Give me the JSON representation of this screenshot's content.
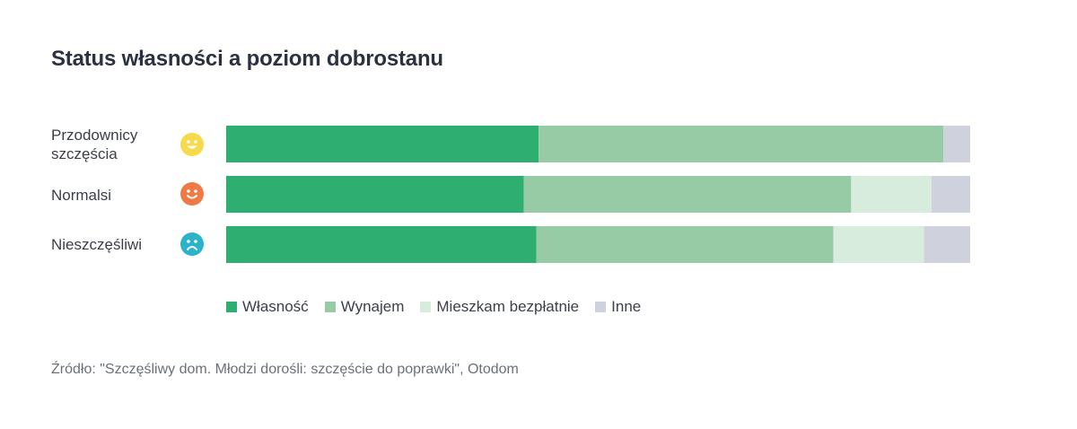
{
  "title": "Status własności a poziom dobrostanu",
  "source": "Źródło: \"Szczęśliwy dom. Młodzi dorośli: szczęście do poprawki\", Otodom",
  "chart_data": {
    "type": "bar",
    "orientation": "horizontal",
    "stacked": true,
    "normalized_percent": true,
    "categories": [
      "Przodownicy\nszczęścia",
      "Normalsi",
      "Nieszczęśliwi"
    ],
    "category_icons": [
      "smiling-face-icon",
      "smiling-face-icon",
      "frowning-face-icon"
    ],
    "category_icon_colors": [
      "#f7d94c",
      "#ef7a45",
      "#2bb3c9"
    ],
    "series": [
      {
        "name": "Własność",
        "color": "#2fae72",
        "values": [
          42,
          40,
          41.7
        ]
      },
      {
        "name": "Wynajem",
        "color": "#97cba6",
        "values": [
          54.4,
          44,
          39.9
        ]
      },
      {
        "name": "Mieszkam bezpłatnie",
        "color": "#d7ecdd",
        "values": [
          0,
          10.8,
          12.2
        ]
      },
      {
        "name": "Inne",
        "color": "#cfd1dc",
        "values": [
          3.6,
          5.2,
          6.2
        ]
      }
    ],
    "xlim": [
      0,
      100
    ],
    "grid": false,
    "legend_position": "bottom-left"
  }
}
